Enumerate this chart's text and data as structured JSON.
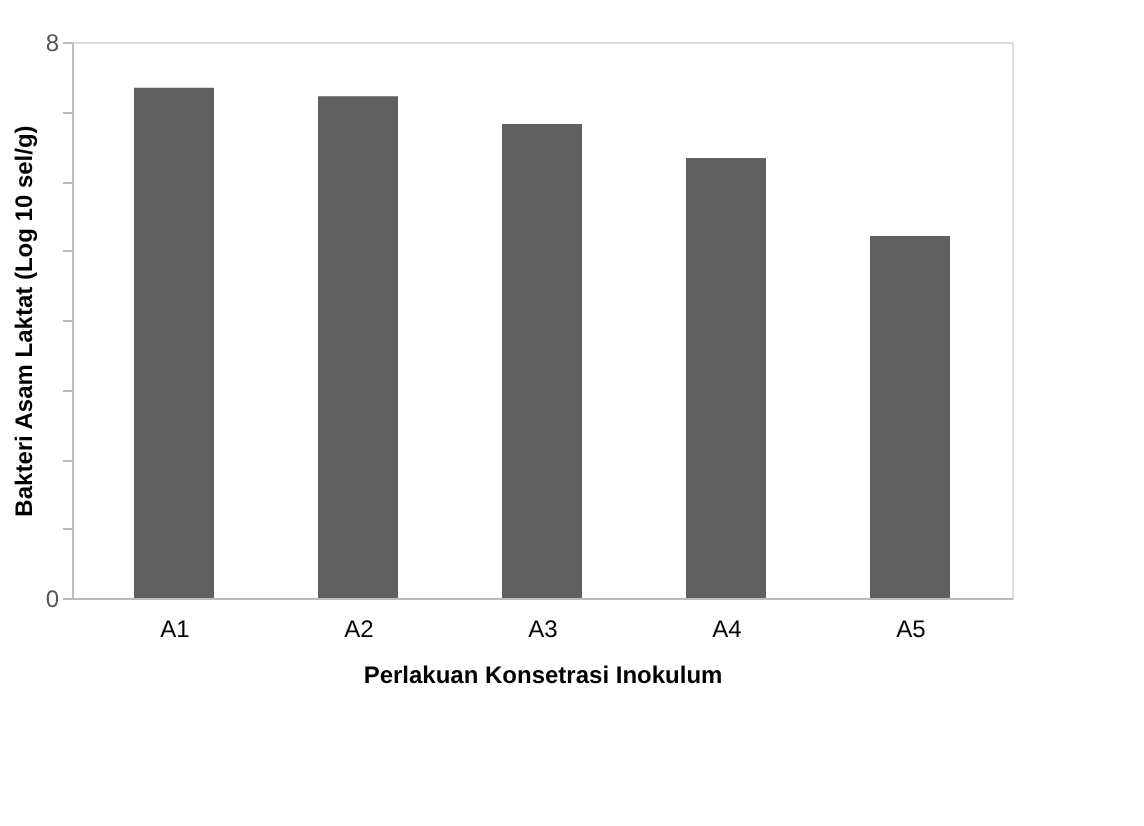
{
  "chart_data": {
    "type": "bar",
    "xlabel": "Perlakuan Konsetrasi Inokulum",
    "ylabel": "Bakteri Asam Laktat (Log 10 sel/g)",
    "categories": [
      "A1",
      "A2",
      "A3",
      "A4",
      "A5"
    ],
    "values": [
      7.34,
      7.22,
      6.82,
      6.33,
      5.21
    ],
    "color": "#606060",
    "ylim": [
      0,
      8
    ],
    "yticks": [
      0,
      {
        "value": 1,
        "label": null
      },
      {
        "value": 2,
        "label": null
      },
      {
        "value": 3,
        "label": null
      },
      {
        "value": 4,
        "label": null
      },
      {
        "value": 5,
        "label": null
      },
      {
        "value": 6,
        "label": null
      },
      {
        "value": 7,
        "label": null
      },
      8
    ],
    "grid": false
  }
}
